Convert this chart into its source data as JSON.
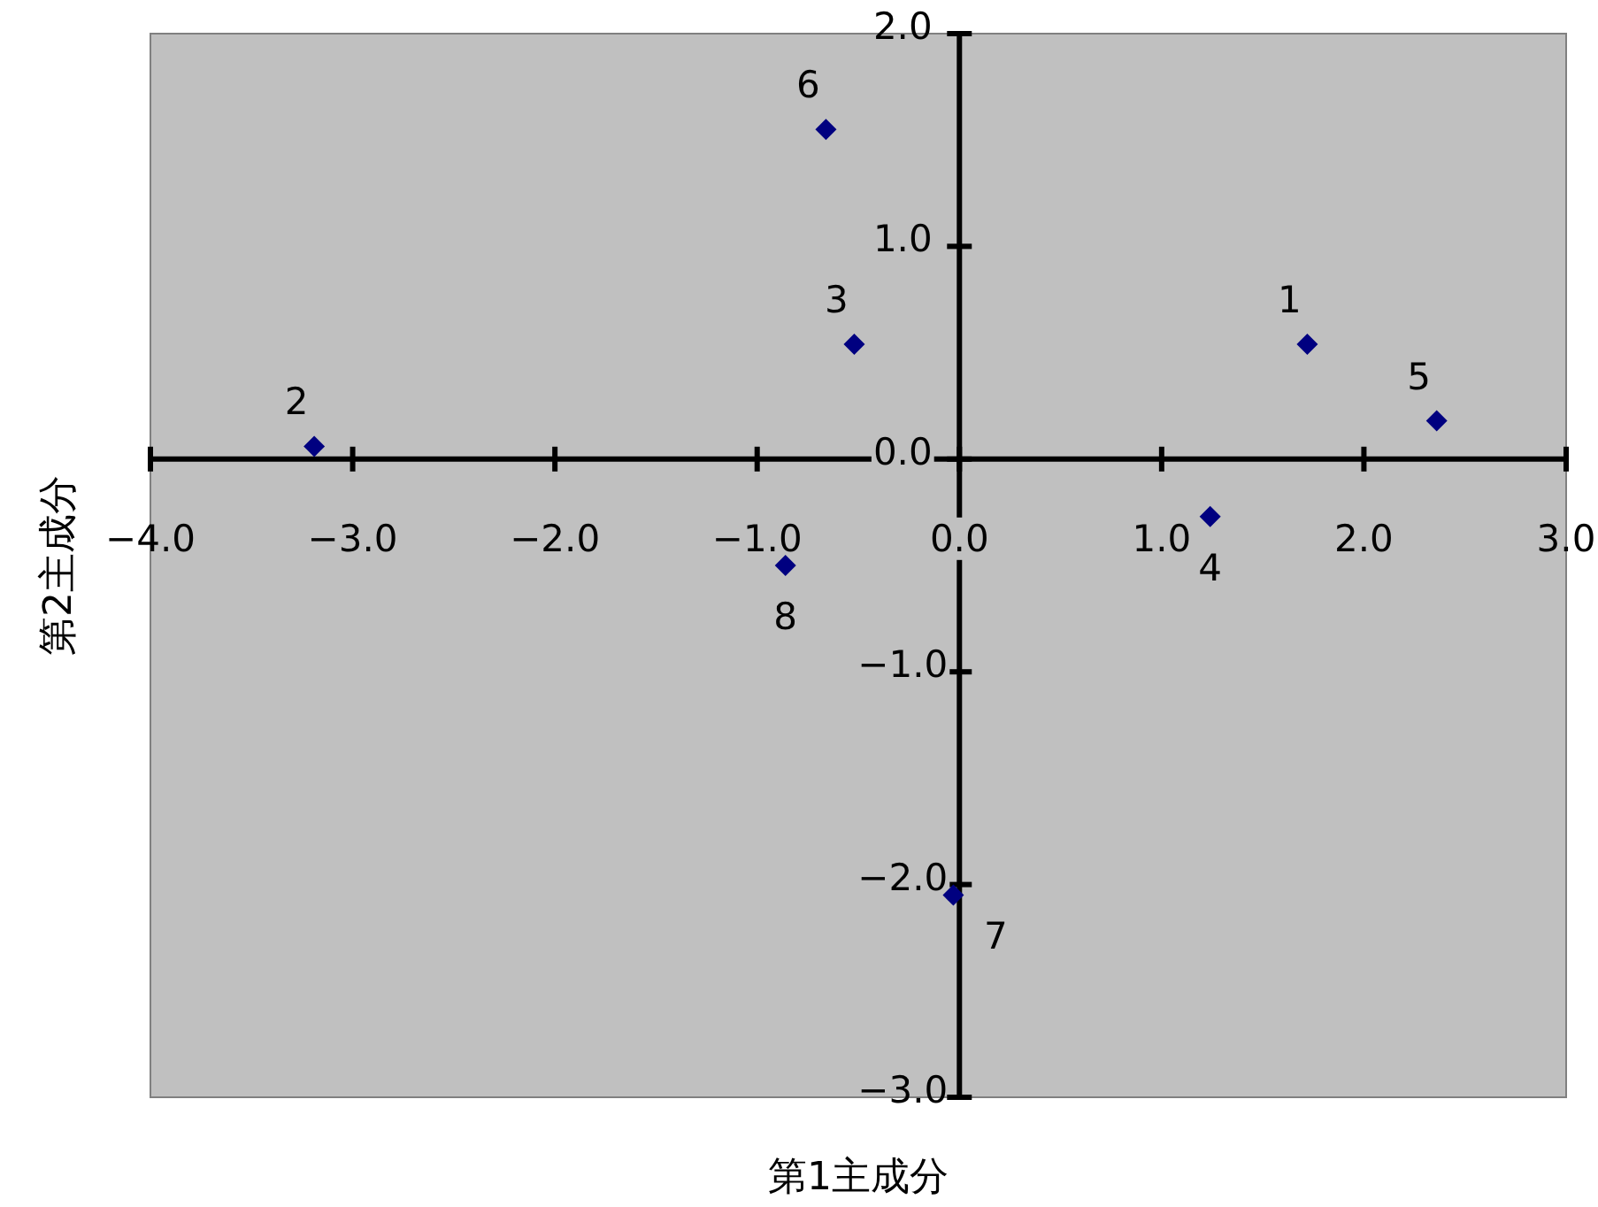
{
  "chart_data": {
    "type": "scatter",
    "xlabel": "第1主成分",
    "ylabel": "第2主成分",
    "x": [
      1.72,
      -3.19,
      -0.52,
      1.24,
      2.36,
      -0.66,
      -0.03,
      -0.86
    ],
    "series": [
      {
        "color": "#000080",
        "values": [
          0.54,
          0.06,
          0.54,
          -0.27,
          0.18,
          1.55,
          -2.05,
          -0.5
        ]
      }
    ],
    "marker": "diamond",
    "grid": false,
    "xlim": [
      -4,
      3
    ],
    "ylim": [
      -3,
      2
    ],
    "xticks": [
      {
        "value": -4,
        "label": "−4.0"
      },
      {
        "value": -3,
        "label": "−3.0"
      },
      {
        "value": -2,
        "label": "−2.0"
      },
      {
        "value": -1,
        "label": "−1.0"
      },
      {
        "value": 0,
        "label": "0.0"
      },
      {
        "value": 1,
        "label": "1.0"
      },
      {
        "value": 2,
        "label": "2.0"
      },
      {
        "value": 3,
        "label": "3.0"
      }
    ],
    "yticks": [
      {
        "value": -3,
        "label": "−3.0"
      },
      {
        "value": -2,
        "label": "−2.0"
      },
      {
        "value": -1,
        "label": "−1.0"
      },
      {
        "value": 0,
        "label": "0.0"
      },
      {
        "value": 1,
        "label": "1.0"
      },
      {
        "value": 2,
        "label": "2.0"
      }
    ],
    "annotations": [
      {
        "text": "1",
        "x": 1.72,
        "y": 0.54
      },
      {
        "text": "2",
        "x": -3.19,
        "y": 0.06
      },
      {
        "text": "3",
        "x": -0.52,
        "y": 0.54
      },
      {
        "text": "4",
        "x": 1.24,
        "y": -0.27
      },
      {
        "text": "5",
        "x": 2.36,
        "y": 0.18
      },
      {
        "text": "6",
        "x": -0.66,
        "y": 1.55
      },
      {
        "text": "7",
        "x": -0.03,
        "y": -2.05
      },
      {
        "text": "8",
        "x": -0.86,
        "y": -0.5
      }
    ]
  }
}
